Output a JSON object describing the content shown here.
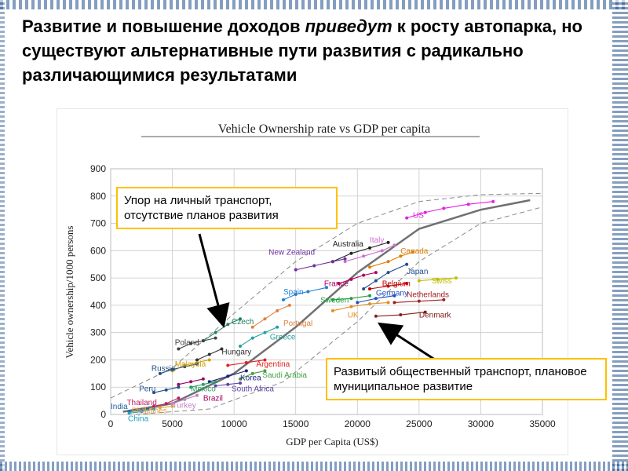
{
  "slide": {
    "headline_part1": "Развитие и повышение доходов ",
    "headline_italic": "приведут",
    "headline_part2": " к росту автопарка, но существуют альтернативные пути развития с радикально различающимися результатами"
  },
  "callouts": {
    "private_transport": "Упор на личный транспорт, отсутствие планов развития",
    "public_transport": "Развитый общественный транспорт, плановое муниципальное развитие"
  },
  "colors": {
    "frame": "#1f4e8c",
    "callout_border": "#ffc000",
    "trend": "#707070",
    "arrow": "#000000"
  },
  "chart_data": {
    "type": "scatter",
    "title": "Vehicle Ownership rate vs GDP per capita",
    "xlabel": "GDP per Capita (US$)",
    "ylabel": "Vehicle ownership/1000 persons",
    "xlim": [
      0,
      35000
    ],
    "ylim": [
      0,
      900
    ],
    "x_ticks": [
      0,
      5000,
      10000,
      15000,
      20000,
      25000,
      30000,
      35000
    ],
    "y_ticks": [
      0,
      100,
      200,
      300,
      400,
      500,
      600,
      700,
      800,
      900
    ],
    "grid": true,
    "trend": {
      "x": [
        1000,
        5000,
        10000,
        15000,
        20000,
        25000,
        30000,
        34000
      ],
      "y": [
        10,
        40,
        150,
        320,
        520,
        680,
        750,
        785
      ]
    },
    "band_upper": {
      "x": [
        0,
        5000,
        10000,
        15000,
        20000,
        25000,
        30000,
        35000
      ],
      "y": [
        60,
        170,
        370,
        560,
        700,
        780,
        805,
        810
      ]
    },
    "band_lower": {
      "x": [
        2000,
        8000,
        14000,
        20000,
        25000,
        30000,
        35000
      ],
      "y": [
        0,
        20,
        120,
        340,
        560,
        700,
        760
      ]
    },
    "series": [
      {
        "name": "US",
        "color": "#e020e0",
        "x": [
          24000,
          25500,
          27000,
          29000,
          31000
        ],
        "y": [
          720,
          740,
          755,
          770,
          780
        ]
      },
      {
        "name": "Australia",
        "color": "#202020",
        "x": [
          18000,
          19500,
          21000,
          22500
        ],
        "y": [
          560,
          590,
          610,
          630
        ]
      },
      {
        "name": "Italy",
        "color": "#d070d0",
        "x": [
          19000,
          20500,
          22000,
          23000
        ],
        "y": [
          560,
          580,
          600,
          620
        ]
      },
      {
        "name": "New Zealand",
        "color": "#7030a0",
        "x": [
          15000,
          16500,
          18000,
          19000
        ],
        "y": [
          530,
          545,
          560,
          570
        ]
      },
      {
        "name": "Canada",
        "color": "#e08000",
        "x": [
          21000,
          22500,
          23500,
          24500
        ],
        "y": [
          540,
          560,
          580,
          595
        ]
      },
      {
        "name": "Japan",
        "color": "#1f4e8c",
        "x": [
          20500,
          21500,
          22500,
          24000
        ],
        "y": [
          460,
          490,
          520,
          550
        ]
      },
      {
        "name": "Swiss",
        "color": "#c0c000",
        "x": [
          25000,
          26500,
          28000
        ],
        "y": [
          490,
          495,
          500
        ]
      },
      {
        "name": "France",
        "color": "#b00060",
        "x": [
          18500,
          19500,
          20500,
          21500
        ],
        "y": [
          480,
          495,
          510,
          520
        ]
      },
      {
        "name": "Belgium",
        "color": "#c00000",
        "x": [
          21000,
          22500,
          24000
        ],
        "y": [
          460,
          470,
          480
        ]
      },
      {
        "name": "Spain",
        "color": "#2080d0",
        "x": [
          14000,
          15000,
          16000,
          17500
        ],
        "y": [
          420,
          440,
          450,
          465
        ]
      },
      {
        "name": "Sweden",
        "color": "#20a040",
        "x": [
          18000,
          19500,
          21000
        ],
        "y": [
          420,
          425,
          435
        ]
      },
      {
        "name": "Germany",
        "color": "#2050c0",
        "x": [
          20000,
          21500,
          23000
        ],
        "y": [
          410,
          425,
          435
        ]
      },
      {
        "name": "Netherlands",
        "color": "#a02020",
        "x": [
          23000,
          25000,
          27000
        ],
        "y": [
          410,
          415,
          420
        ]
      },
      {
        "name": "UK",
        "color": "#e09020",
        "x": [
          18000,
          19500,
          21000,
          22500
        ],
        "y": [
          380,
          395,
          405,
          410
        ]
      },
      {
        "name": "Denmark",
        "color": "#802020",
        "x": [
          21500,
          23500,
          25500
        ],
        "y": [
          360,
          365,
          375
        ]
      },
      {
        "name": "Czech",
        "color": "#208060",
        "x": [
          7500,
          8500,
          9500,
          10500
        ],
        "y": [
          270,
          300,
          330,
          350
        ]
      },
      {
        "name": "Portugal",
        "color": "#e08040",
        "x": [
          11500,
          12500,
          13500,
          14500
        ],
        "y": [
          320,
          350,
          380,
          400
        ]
      },
      {
        "name": "Greece",
        "color": "#20a0a0",
        "x": [
          10500,
          11500,
          12500,
          13500
        ],
        "y": [
          250,
          280,
          300,
          320
        ]
      },
      {
        "name": "Poland",
        "color": "#404040",
        "x": [
          5500,
          6500,
          7500,
          8500
        ],
        "y": [
          240,
          260,
          270,
          280
        ]
      },
      {
        "name": "Hungary",
        "color": "#303030",
        "x": [
          7000,
          8000,
          9000
        ],
        "y": [
          200,
          220,
          240
        ]
      },
      {
        "name": "Malaysia",
        "color": "#d0a000",
        "x": [
          5000,
          6000,
          7000,
          8000
        ],
        "y": [
          160,
          180,
          190,
          200
        ]
      },
      {
        "name": "Argentina",
        "color": "#e02020",
        "x": [
          9500,
          11000,
          12500
        ],
        "y": [
          180,
          190,
          200
        ]
      },
      {
        "name": "Russia",
        "color": "#205080",
        "x": [
          4000,
          5000,
          6000,
          7000
        ],
        "y": [
          150,
          165,
          175,
          185
        ]
      },
      {
        "name": "Saudi Arabia",
        "color": "#40a040",
        "x": [
          10500,
          11500,
          12500
        ],
        "y": [
          130,
          150,
          160
        ]
      },
      {
        "name": "Korea",
        "color": "#202080",
        "x": [
          8000,
          9500,
          11000
        ],
        "y": [
          120,
          140,
          160
        ]
      },
      {
        "name": "Brazil",
        "color": "#a00060",
        "x": [
          5500,
          6500,
          7500
        ],
        "y": [
          110,
          120,
          130
        ]
      },
      {
        "name": "Mexico",
        "color": "#20a060",
        "x": [
          6500,
          7500,
          8500
        ],
        "y": [
          100,
          110,
          120
        ]
      },
      {
        "name": "South Africa",
        "color": "#6040a0",
        "x": [
          8500,
          9500,
          10500
        ],
        "y": [
          105,
          110,
          115
        ]
      },
      {
        "name": "Peru",
        "color": "#205090",
        "x": [
          3500,
          4500,
          5500
        ],
        "y": [
          80,
          90,
          100
        ]
      },
      {
        "name": "Turkey",
        "color": "#c080c0",
        "x": [
          5000,
          6000,
          7000
        ],
        "y": [
          40,
          55,
          70
        ]
      },
      {
        "name": "Thailand",
        "color": "#c02060",
        "x": [
          3500,
          4500,
          5500
        ],
        "y": [
          30,
          40,
          60
        ]
      },
      {
        "name": "Philippines",
        "color": "#e0a040",
        "x": [
          3000,
          4000,
          5000
        ],
        "y": [
          20,
          25,
          30
        ]
      },
      {
        "name": "India",
        "color": "#2060a0",
        "x": [
          1500,
          2500,
          3000
        ],
        "y": [
          10,
          15,
          20
        ]
      },
      {
        "name": "China",
        "color": "#20a0c0",
        "x": [
          1500,
          2500,
          3500
        ],
        "y": [
          5,
          10,
          20
        ]
      }
    ],
    "labels": [
      {
        "text": "US",
        "x": 24500,
        "y": 720,
        "color": "#e020e0"
      },
      {
        "text": "Australia",
        "x": 18000,
        "y": 615,
        "color": "#202020"
      },
      {
        "text": "Italy",
        "x": 21000,
        "y": 630,
        "color": "#d070d0"
      },
      {
        "text": "New Zealand",
        "x": 12800,
        "y": 585,
        "color": "#7030a0"
      },
      {
        "text": "Canada",
        "x": 23500,
        "y": 590,
        "color": "#e08000"
      },
      {
        "text": "Japan",
        "x": 24000,
        "y": 515,
        "color": "#1f4e8c"
      },
      {
        "text": "Swiss",
        "x": 26000,
        "y": 480,
        "color": "#c0c000"
      },
      {
        "text": "France",
        "x": 17300,
        "y": 470,
        "color": "#b00060"
      },
      {
        "text": "Belgium",
        "x": 22000,
        "y": 470,
        "color": "#c00000"
      },
      {
        "text": "Spain",
        "x": 14000,
        "y": 440,
        "color": "#2080d0"
      },
      {
        "text": "Sweden",
        "x": 17000,
        "y": 410,
        "color": "#20a040"
      },
      {
        "text": "Germany",
        "x": 21500,
        "y": 435,
        "color": "#2050c0"
      },
      {
        "text": "Netherlands",
        "x": 24000,
        "y": 430,
        "color": "#a02020"
      },
      {
        "text": "UK",
        "x": 19200,
        "y": 355,
        "color": "#e09020"
      },
      {
        "text": "Denmark",
        "x": 25000,
        "y": 355,
        "color": "#802020"
      },
      {
        "text": "Czech",
        "x": 9800,
        "y": 330,
        "color": "#208060"
      },
      {
        "text": "Portugal",
        "x": 14000,
        "y": 325,
        "color": "#e08040"
      },
      {
        "text": "Greece",
        "x": 12900,
        "y": 275,
        "color": "#20a0a0"
      },
      {
        "text": "Poland",
        "x": 5200,
        "y": 255,
        "color": "#404040"
      },
      {
        "text": "Hungary",
        "x": 9000,
        "y": 220,
        "color": "#303030"
      },
      {
        "text": "Malaysia",
        "x": 5200,
        "y": 175,
        "color": "#d0a000"
      },
      {
        "text": "Argentina",
        "x": 11800,
        "y": 175,
        "color": "#e02020"
      },
      {
        "text": "Russia",
        "x": 3300,
        "y": 160,
        "color": "#205080"
      },
      {
        "text": "Saudi Arabia",
        "x": 12300,
        "y": 135,
        "color": "#40a040"
      },
      {
        "text": "Korea",
        "x": 10500,
        "y": 125,
        "color": "#202080"
      },
      {
        "text": "Brazil",
        "x": 7500,
        "y": 50,
        "color": "#a00060"
      },
      {
        "text": "Mexico",
        "x": 6500,
        "y": 85,
        "color": "#20a060"
      },
      {
        "text": "South Africa",
        "x": 9800,
        "y": 85,
        "color": "#6040a0"
      },
      {
        "text": "Peru",
        "x": 2300,
        "y": 85,
        "color": "#205090"
      },
      {
        "text": "Turkey",
        "x": 5000,
        "y": 25,
        "color": "#c080c0"
      },
      {
        "text": "Thailand",
        "x": 1300,
        "y": 35,
        "color": "#c02060"
      },
      {
        "text": "India",
        "x": 0,
        "y": 20,
        "color": "#2060a0"
      },
      {
        "text": "Phillipines",
        "x": 1700,
        "y": 5,
        "color": "#e0a040"
      },
      {
        "text": "China",
        "x": 1400,
        "y": -25,
        "color": "#20a0c0"
      }
    ]
  }
}
